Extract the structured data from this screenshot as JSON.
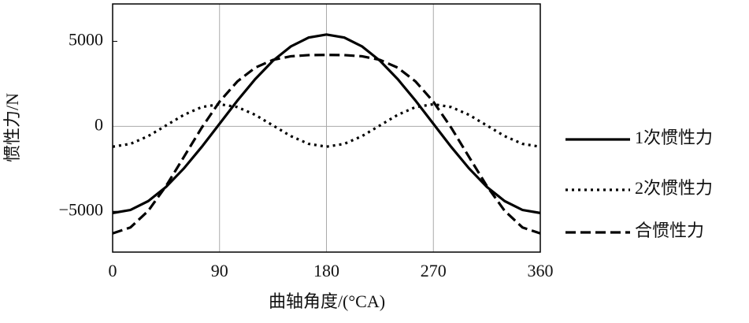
{
  "chart_data": {
    "type": "line",
    "x_label": "曲轴角度/(°CA)",
    "y_label": "惯性力/N",
    "x": [
      0,
      15,
      30,
      45,
      60,
      75,
      90,
      105,
      120,
      135,
      150,
      165,
      180,
      195,
      210,
      225,
      240,
      255,
      270,
      285,
      300,
      315,
      330,
      345,
      360
    ],
    "series": [
      {
        "name": "1次惯性力",
        "color": "#000000",
        "dash": "solid",
        "values": [
          -5100,
          -4921,
          -4397,
          -3562,
          -2475,
          -1210,
          150,
          1510,
          2775,
          3862,
          4697,
          5222,
          5400,
          5222,
          4697,
          3862,
          2775,
          1510,
          150,
          -1210,
          -2475,
          -3562,
          -4397,
          -4921,
          -5100
        ]
      },
      {
        "name": "2次惯性力",
        "color": "#000000",
        "dash": "dotted",
        "values": [
          -1200,
          -1033,
          -575,
          50,
          675,
          1133,
          1300,
          1133,
          675,
          50,
          -575,
          -1033,
          -1200,
          -1033,
          -575,
          50,
          675,
          1133,
          1300,
          1133,
          675,
          50,
          -575,
          -1033,
          -1200
        ]
      },
      {
        "name": "合惯性力",
        "color": "#000000",
        "dash": "dashed",
        "values": [
          -6300,
          -5950,
          -4970,
          -3510,
          -1800,
          -80,
          1450,
          2640,
          3450,
          3910,
          4120,
          4190,
          4200,
          4190,
          4120,
          3910,
          3450,
          2640,
          1450,
          -80,
          -1800,
          -3510,
          -4970,
          -5950,
          -6300
        ]
      }
    ],
    "xlim": [
      0,
      360
    ],
    "xticks": [
      0,
      90,
      180,
      270,
      360
    ],
    "ylim": [
      -7400,
      7200
    ],
    "yticks": [
      {
        "value": -5000,
        "label": "−5000"
      },
      0,
      5000
    ],
    "grid": "x",
    "zero_line": true,
    "legend": "right"
  }
}
